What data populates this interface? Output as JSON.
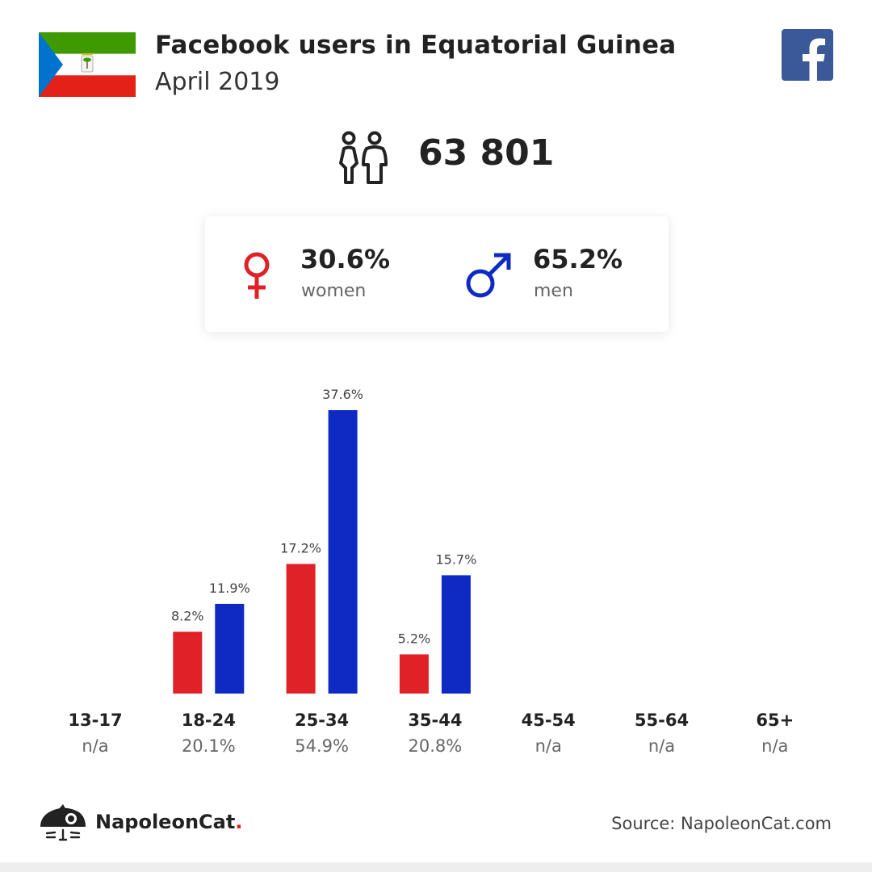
{
  "header": {
    "title": "Facebook users in Equatorial Guinea",
    "subtitle": "April 2019"
  },
  "flag_colors": {
    "green": "#3e9a00",
    "white": "#ffffff",
    "red": "#e32118",
    "blue": "#0073ce"
  },
  "icons": {
    "brand": "facebook-icon",
    "users": "users-icon",
    "female": "female-symbol-icon",
    "male": "male-symbol-icon",
    "logo": "napoleoncat-logo"
  },
  "total_users": "63 801",
  "gender": {
    "women": {
      "pct": "30.6%",
      "label": "women",
      "color": "#e02127"
    },
    "men": {
      "pct": "65.2%",
      "label": "men",
      "color": "#0e2ac2"
    }
  },
  "chart_data": {
    "type": "bar",
    "categories": [
      "13-17",
      "18-24",
      "25-34",
      "35-44",
      "45-54",
      "55-64",
      "65+"
    ],
    "category_totals": [
      "n/a",
      "20.1%",
      "54.9%",
      "20.8%",
      "n/a",
      "n/a",
      "n/a"
    ],
    "series": [
      {
        "values": [
          null,
          8.2,
          17.2,
          5.2,
          null,
          null,
          null
        ],
        "labels": [
          "",
          "8.2%",
          "17.2%",
          "5.2%",
          "",
          "",
          ""
        ],
        "color": "#e02127"
      },
      {
        "values": [
          null,
          11.9,
          37.6,
          15.7,
          null,
          null,
          null
        ],
        "labels": [
          "",
          "11.9%",
          "37.6%",
          "15.7%",
          "",
          "",
          ""
        ],
        "color": "#0e2ac2"
      }
    ],
    "ylim": [
      0,
      37.6
    ],
    "grid": false
  },
  "footer": {
    "brand_name": "NapoleonCat",
    "brand_dot": ".",
    "source": "Source: NapoleonCat.com"
  }
}
